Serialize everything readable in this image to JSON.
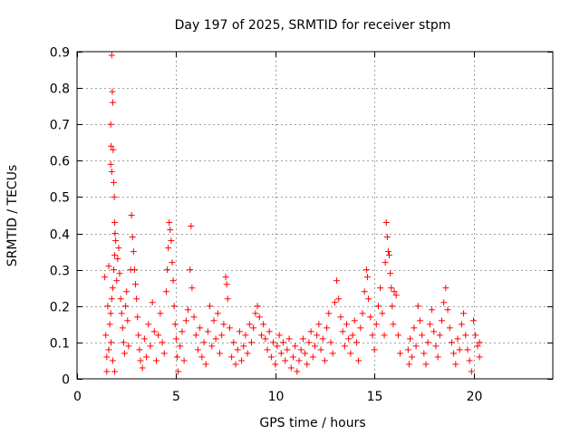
{
  "chart_data": {
    "type": "scatter",
    "title": "Day 197 of 2025, SRMTID for receiver stpm",
    "xlabel": "GPS time / hours",
    "ylabel": "SRMTID / TECUs",
    "xlim": [
      0,
      24
    ],
    "ylim": [
      0,
      0.9
    ],
    "x_ticks": [
      0,
      5,
      10,
      15,
      20
    ],
    "y_ticks": [
      0,
      0.1,
      0.2,
      0.3,
      0.4,
      0.5,
      0.6,
      0.7,
      0.8,
      0.9
    ],
    "x_tick_labels": [
      "0",
      "5",
      "10",
      "15",
      "20"
    ],
    "y_tick_labels": [
      "0",
      "0.1",
      "0.2",
      "0.3",
      "0.4",
      "0.5",
      "0.6",
      "0.7",
      "0.8",
      "0.9"
    ],
    "grid": true,
    "marker": "plus",
    "color": "#ff0000",
    "series": [
      {
        "name": "SRMTID",
        "points": [
          [
            1.4,
            0.28
          ],
          [
            1.45,
            0.12
          ],
          [
            1.5,
            0.06
          ],
          [
            1.5,
            0.02
          ],
          [
            1.55,
            0.2
          ],
          [
            1.6,
            0.31
          ],
          [
            1.6,
            0.08
          ],
          [
            1.65,
            0.15
          ],
          [
            1.7,
            0.7
          ],
          [
            1.72,
            0.64
          ],
          [
            1.75,
            0.89
          ],
          [
            1.78,
            0.79
          ],
          [
            1.8,
            0.76
          ],
          [
            1.82,
            0.63
          ],
          [
            1.7,
            0.59
          ],
          [
            1.75,
            0.57
          ],
          [
            1.85,
            0.54
          ],
          [
            1.88,
            0.5
          ],
          [
            1.9,
            0.43
          ],
          [
            1.92,
            0.4
          ],
          [
            1.95,
            0.38
          ],
          [
            1.9,
            0.34
          ],
          [
            1.85,
            0.3
          ],
          [
            1.8,
            0.25
          ],
          [
            1.75,
            0.22
          ],
          [
            1.7,
            0.18
          ],
          [
            1.72,
            0.1
          ],
          [
            1.8,
            0.05
          ],
          [
            1.9,
            0.02
          ],
          [
            2.0,
            0.27
          ],
          [
            2.05,
            0.33
          ],
          [
            2.1,
            0.36
          ],
          [
            2.15,
            0.29
          ],
          [
            2.2,
            0.22
          ],
          [
            2.25,
            0.18
          ],
          [
            2.3,
            0.14
          ],
          [
            2.35,
            0.1
          ],
          [
            2.4,
            0.07
          ],
          [
            2.45,
            0.2
          ],
          [
            2.5,
            0.24
          ],
          [
            2.55,
            0.16
          ],
          [
            2.6,
            0.09
          ],
          [
            2.7,
            0.3
          ],
          [
            2.75,
            0.45
          ],
          [
            2.8,
            0.39
          ],
          [
            2.85,
            0.35
          ],
          [
            2.9,
            0.3
          ],
          [
            2.95,
            0.26
          ],
          [
            3.0,
            0.22
          ],
          [
            3.05,
            0.17
          ],
          [
            3.1,
            0.12
          ],
          [
            3.15,
            0.08
          ],
          [
            3.2,
            0.05
          ],
          [
            3.3,
            0.03
          ],
          [
            3.4,
            0.11
          ],
          [
            3.5,
            0.06
          ],
          [
            3.6,
            0.15
          ],
          [
            3.7,
            0.09
          ],
          [
            3.8,
            0.21
          ],
          [
            3.9,
            0.13
          ],
          [
            4.0,
            0.05
          ],
          [
            4.1,
            0.12
          ],
          [
            4.2,
            0.18
          ],
          [
            4.3,
            0.1
          ],
          [
            4.4,
            0.07
          ],
          [
            4.5,
            0.24
          ],
          [
            4.55,
            0.3
          ],
          [
            4.6,
            0.36
          ],
          [
            4.65,
            0.43
          ],
          [
            4.7,
            0.41
          ],
          [
            4.75,
            0.38
          ],
          [
            4.8,
            0.32
          ],
          [
            4.85,
            0.27
          ],
          [
            4.9,
            0.2
          ],
          [
            4.95,
            0.15
          ],
          [
            5.0,
            0.11
          ],
          [
            5.05,
            0.06
          ],
          [
            5.1,
            0.02
          ],
          [
            5.2,
            0.09
          ],
          [
            5.3,
            0.13
          ],
          [
            5.4,
            0.05
          ],
          [
            5.5,
            0.16
          ],
          [
            5.6,
            0.19
          ],
          [
            5.7,
            0.3
          ],
          [
            5.75,
            0.42
          ],
          [
            5.8,
            0.25
          ],
          [
            5.9,
            0.17
          ],
          [
            6.0,
            0.12
          ],
          [
            6.1,
            0.08
          ],
          [
            6.2,
            0.14
          ],
          [
            6.3,
            0.06
          ],
          [
            6.4,
            0.1
          ],
          [
            6.5,
            0.04
          ],
          [
            6.6,
            0.13
          ],
          [
            6.7,
            0.2
          ],
          [
            6.8,
            0.09
          ],
          [
            6.9,
            0.16
          ],
          [
            7.0,
            0.11
          ],
          [
            7.1,
            0.18
          ],
          [
            7.2,
            0.07
          ],
          [
            7.3,
            0.12
          ],
          [
            7.4,
            0.15
          ],
          [
            7.5,
            0.28
          ],
          [
            7.55,
            0.26
          ],
          [
            7.6,
            0.22
          ],
          [
            7.7,
            0.14
          ],
          [
            7.8,
            0.06
          ],
          [
            7.9,
            0.1
          ],
          [
            8.0,
            0.04
          ],
          [
            8.1,
            0.08
          ],
          [
            8.2,
            0.13
          ],
          [
            8.3,
            0.05
          ],
          [
            8.4,
            0.09
          ],
          [
            8.5,
            0.12
          ],
          [
            8.6,
            0.07
          ],
          [
            8.7,
            0.15
          ],
          [
            8.8,
            0.1
          ],
          [
            8.9,
            0.14
          ],
          [
            9.0,
            0.18
          ],
          [
            9.1,
            0.2
          ],
          [
            9.2,
            0.17
          ],
          [
            9.3,
            0.12
          ],
          [
            9.4,
            0.15
          ],
          [
            9.5,
            0.11
          ],
          [
            9.6,
            0.08
          ],
          [
            9.7,
            0.13
          ],
          [
            9.8,
            0.06
          ],
          [
            9.9,
            0.1
          ],
          [
            10.0,
            0.04
          ],
          [
            10.1,
            0.09
          ],
          [
            10.2,
            0.12
          ],
          [
            10.3,
            0.07
          ],
          [
            10.4,
            0.1
          ],
          [
            10.5,
            0.05
          ],
          [
            10.6,
            0.08
          ],
          [
            10.7,
            0.11
          ],
          [
            10.8,
            0.03
          ],
          [
            10.9,
            0.06
          ],
          [
            11.0,
            0.09
          ],
          [
            11.1,
            0.02
          ],
          [
            11.2,
            0.05
          ],
          [
            11.3,
            0.08
          ],
          [
            11.4,
            0.11
          ],
          [
            11.5,
            0.07
          ],
          [
            11.6,
            0.04
          ],
          [
            11.7,
            0.1
          ],
          [
            11.8,
            0.13
          ],
          [
            11.9,
            0.06
          ],
          [
            12.0,
            0.09
          ],
          [
            12.1,
            0.12
          ],
          [
            12.2,
            0.15
          ],
          [
            12.3,
            0.08
          ],
          [
            12.4,
            0.11
          ],
          [
            12.5,
            0.05
          ],
          [
            12.6,
            0.14
          ],
          [
            12.7,
            0.18
          ],
          [
            12.8,
            0.1
          ],
          [
            12.9,
            0.07
          ],
          [
            13.0,
            0.21
          ],
          [
            13.1,
            0.27
          ],
          [
            13.2,
            0.22
          ],
          [
            13.3,
            0.17
          ],
          [
            13.4,
            0.13
          ],
          [
            13.5,
            0.09
          ],
          [
            13.6,
            0.15
          ],
          [
            13.7,
            0.11
          ],
          [
            13.8,
            0.07
          ],
          [
            13.9,
            0.12
          ],
          [
            14.0,
            0.16
          ],
          [
            14.1,
            0.1
          ],
          [
            14.2,
            0.05
          ],
          [
            14.3,
            0.14
          ],
          [
            14.4,
            0.18
          ],
          [
            14.5,
            0.24
          ],
          [
            14.6,
            0.3
          ],
          [
            14.65,
            0.28
          ],
          [
            14.7,
            0.22
          ],
          [
            14.8,
            0.17
          ],
          [
            14.9,
            0.12
          ],
          [
            15.0,
            0.08
          ],
          [
            15.1,
            0.15
          ],
          [
            15.2,
            0.2
          ],
          [
            15.3,
            0.25
          ],
          [
            15.4,
            0.18
          ],
          [
            15.5,
            0.12
          ],
          [
            15.55,
            0.32
          ],
          [
            15.6,
            0.43
          ],
          [
            15.65,
            0.39
          ],
          [
            15.7,
            0.35
          ],
          [
            15.75,
            0.34
          ],
          [
            15.8,
            0.29
          ],
          [
            15.85,
            0.25
          ],
          [
            15.9,
            0.2
          ],
          [
            15.95,
            0.15
          ],
          [
            16.0,
            0.24
          ],
          [
            16.1,
            0.23
          ],
          [
            16.2,
            0.12
          ],
          [
            16.3,
            0.07
          ],
          [
            16.7,
            0.08
          ],
          [
            16.75,
            0.04
          ],
          [
            16.8,
            0.11
          ],
          [
            16.9,
            0.06
          ],
          [
            17.0,
            0.14
          ],
          [
            17.1,
            0.09
          ],
          [
            17.2,
            0.2
          ],
          [
            17.3,
            0.16
          ],
          [
            17.4,
            0.12
          ],
          [
            17.5,
            0.07
          ],
          [
            17.6,
            0.04
          ],
          [
            17.7,
            0.1
          ],
          [
            17.8,
            0.15
          ],
          [
            17.9,
            0.19
          ],
          [
            18.0,
            0.13
          ],
          [
            18.1,
            0.09
          ],
          [
            18.2,
            0.06
          ],
          [
            18.3,
            0.12
          ],
          [
            18.4,
            0.16
          ],
          [
            18.5,
            0.21
          ],
          [
            18.6,
            0.25
          ],
          [
            18.7,
            0.19
          ],
          [
            18.8,
            0.14
          ],
          [
            18.9,
            0.1
          ],
          [
            19.0,
            0.07
          ],
          [
            19.1,
            0.04
          ],
          [
            19.2,
            0.11
          ],
          [
            19.3,
            0.08
          ],
          [
            19.4,
            0.15
          ],
          [
            19.5,
            0.18
          ],
          [
            19.6,
            0.12
          ],
          [
            19.7,
            0.08
          ],
          [
            19.8,
            0.05
          ],
          [
            19.9,
            0.02
          ],
          [
            20.0,
            0.16
          ],
          [
            20.1,
            0.12
          ],
          [
            20.2,
            0.09
          ],
          [
            20.3,
            0.06
          ],
          [
            20.3,
            0.1
          ]
        ]
      }
    ]
  }
}
